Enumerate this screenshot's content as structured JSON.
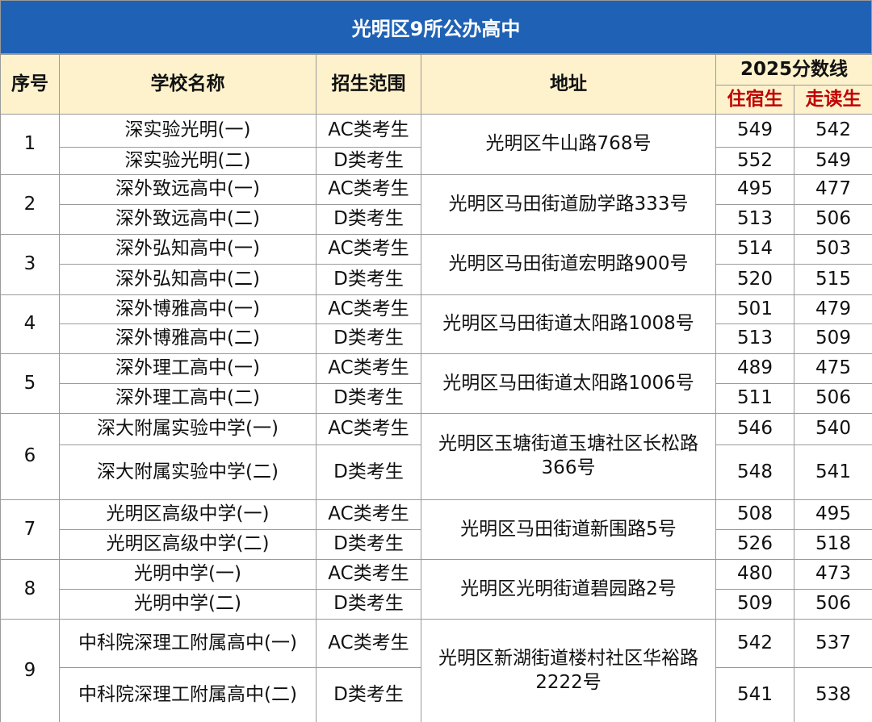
{
  "title": "光明区9所公办高中",
  "table": {
    "headers": {
      "index": "序号",
      "school": "学校名称",
      "scope": "招生范围",
      "address": "地址",
      "score": "2025分数线",
      "boarding": "住宿生",
      "day": "走读生"
    },
    "groups": [
      {
        "index": "1",
        "address": "光明区牛山路768号",
        "rows": [
          {
            "school": "深实验光明(一)",
            "scope": "AC类考生",
            "boarding": 549,
            "day": 542
          },
          {
            "school": "深实验光明(二)",
            "scope": "D类考生",
            "boarding": 552,
            "day": 549
          }
        ]
      },
      {
        "index": "2",
        "address": "光明区马田街道励学路333号",
        "rows": [
          {
            "school": "深外致远高中(一)",
            "scope": "AC类考生",
            "boarding": 495,
            "day": 477
          },
          {
            "school": "深外致远高中(二)",
            "scope": "D类考生",
            "boarding": 513,
            "day": 506
          }
        ]
      },
      {
        "index": "3",
        "address": "光明区马田街道宏明路900号",
        "rows": [
          {
            "school": "深外弘知高中(一)",
            "scope": "AC类考生",
            "boarding": 514,
            "day": 503
          },
          {
            "school": "深外弘知高中(二)",
            "scope": "D类考生",
            "boarding": 520,
            "day": 515
          }
        ]
      },
      {
        "index": "4",
        "address": "光明区马田街道太阳路1008号",
        "rows": [
          {
            "school": "深外博雅高中(一)",
            "scope": "AC类考生",
            "boarding": 501,
            "day": 479
          },
          {
            "school": "深外博雅高中(二)",
            "scope": "D类考生",
            "boarding": 513,
            "day": 509
          }
        ]
      },
      {
        "index": "5",
        "address": "光明区马田街道太阳路1006号",
        "rows": [
          {
            "school": "深外理工高中(一)",
            "scope": "AC类考生",
            "boarding": 489,
            "day": 475
          },
          {
            "school": "深外理工高中(二)",
            "scope": "D类考生",
            "boarding": 511,
            "day": 506
          }
        ]
      },
      {
        "index": "6",
        "address": "光明区玉塘街道玉塘社区长松路366号",
        "rows": [
          {
            "school": "深大附属实验中学(一)",
            "scope": "AC类考生",
            "boarding": 546,
            "day": 540
          },
          {
            "school": "深大附属实验中学(二)",
            "scope": "D类考生",
            "boarding": 548,
            "day": 541
          }
        ]
      },
      {
        "index": "7",
        "address": "光明区马田街道新围路5号",
        "rows": [
          {
            "school": "光明区高级中学(一)",
            "scope": "AC类考生",
            "boarding": 508,
            "day": 495
          },
          {
            "school": "光明区高级中学(二)",
            "scope": "D类考生",
            "boarding": 526,
            "day": 518
          }
        ]
      },
      {
        "index": "8",
        "address": "光明区光明街道碧园路2号",
        "rows": [
          {
            "school": "光明中学(一)",
            "scope": "AC类考生",
            "boarding": 480,
            "day": 473
          },
          {
            "school": "光明中学(二)",
            "scope": "D类考生",
            "boarding": 509,
            "day": 506
          }
        ]
      },
      {
        "index": "9",
        "address": "光明区新湖街道楼村社区华裕路2222号",
        "rows": [
          {
            "school": "中科院深理工附属高中(一)",
            "scope": "AC类考生",
            "boarding": 542,
            "day": 537
          },
          {
            "school": "中科院深理工附属高中(二)",
            "scope": "D类考生",
            "boarding": 541,
            "day": 538
          }
        ]
      }
    ]
  }
}
